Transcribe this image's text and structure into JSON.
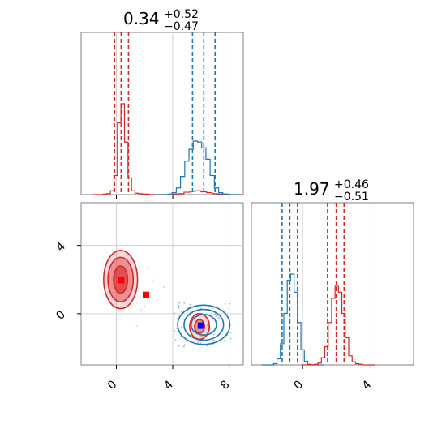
{
  "chart_data": [
    {
      "type": "histogram",
      "panel": "marginal-x",
      "title_value": "0.34",
      "title_plus": "+0.52",
      "title_minus": "−0.47",
      "xlim": [
        -2.5,
        9.0
      ],
      "series": [
        {
          "color": "#d62728",
          "bins_center": [
            -0.8,
            -0.55,
            -0.3,
            -0.05,
            0.2,
            0.45,
            0.7,
            0.95,
            1.2,
            1.45,
            1.7,
            1.95,
            2.2,
            2.45
          ],
          "counts": [
            1,
            2,
            8,
            40,
            150,
            190,
            110,
            35,
            8,
            3,
            2,
            1,
            1,
            0
          ],
          "quantiles": [
            -0.13,
            0.34,
            0.86
          ]
        },
        {
          "color": "#d62728",
          "bins_center": [
            4.2,
            4.6,
            5.0,
            5.4,
            5.8,
            6.2,
            6.6,
            7.0,
            7.4,
            7.8
          ],
          "counts": [
            1,
            2,
            5,
            7,
            8,
            6,
            4,
            2,
            1,
            1
          ],
          "note_group": "minor"
        },
        {
          "color": "#1f77b4",
          "bins_center": [
            3.8,
            4.1,
            4.4,
            4.7,
            5.0,
            5.3,
            5.6,
            5.9,
            6.2,
            6.5,
            6.8,
            7.1,
            7.4,
            7.7
          ],
          "counts": [
            1,
            4,
            14,
            38,
            70,
            95,
            112,
            110,
            98,
            74,
            40,
            14,
            4,
            1
          ],
          "quantiles": [
            5.4,
            6.2,
            7.0
          ]
        }
      ]
    },
    {
      "type": "histogram",
      "panel": "marginal-y",
      "title_value": "1.97",
      "title_plus": "+0.46",
      "title_minus": "−0.51",
      "xlim": [
        -3.0,
        6.5
      ],
      "series": [
        {
          "color": "#1f77b4",
          "bins_center": [
            -1.6,
            -1.4,
            -1.2,
            -1.0,
            -0.8,
            -0.6,
            -0.4,
            -0.2,
            0.0,
            0.2,
            0.4
          ],
          "counts": [
            2,
            10,
            35,
            85,
            140,
            150,
            120,
            70,
            25,
            6,
            1
          ],
          "quantiles": [
            -1.2,
            -0.75,
            -0.3
          ]
        },
        {
          "color": "#d62728",
          "bins_center": [
            0.8,
            1.0,
            1.2,
            1.4,
            1.6,
            1.8,
            2.0,
            2.2,
            2.4,
            2.6,
            2.8,
            3.0,
            3.2,
            3.4
          ],
          "counts": [
            1,
            3,
            12,
            30,
            70,
            110,
            130,
            120,
            85,
            45,
            15,
            5,
            2,
            1
          ],
          "quantiles": [
            1.46,
            1.97,
            2.43
          ]
        }
      ]
    },
    {
      "type": "scatter-contour",
      "panel": "joint",
      "xlim": [
        -2.5,
        9.0
      ],
      "ylim": [
        -3.0,
        6.5
      ],
      "markers": [
        {
          "x": 0.34,
          "y": 1.97,
          "color": "#ff0000"
        },
        {
          "x": 2.1,
          "y": 1.1,
          "color": "#ff0000"
        },
        {
          "x": 6.0,
          "y": -0.7,
          "color": "#0000ff"
        }
      ],
      "contours": [
        {
          "color": "#d62728",
          "cx": 0.3,
          "cy": 2.0,
          "rx": [
            0.5,
            0.9,
            1.2
          ],
          "ry": [
            0.8,
            1.3,
            1.7
          ],
          "filled": true
        },
        {
          "color": "#d62728",
          "cx": 5.9,
          "cy": -0.75,
          "rx": [
            0.35,
            0.7
          ],
          "ry": [
            0.4,
            0.75
          ],
          "filled": true
        },
        {
          "color": "#1f77b4",
          "cx": 6.2,
          "cy": -0.65,
          "rx": [
            0.9,
            1.4,
            1.85
          ],
          "ry": [
            0.6,
            0.9,
            1.15
          ],
          "filled": false
        }
      ]
    }
  ],
  "axes": {
    "bottom_left_xticks": [
      "0",
      "4",
      "8"
    ],
    "bottom_left_yticks": [
      "0",
      "4"
    ],
    "bottom_right_xticks": [
      "0",
      "4"
    ]
  }
}
